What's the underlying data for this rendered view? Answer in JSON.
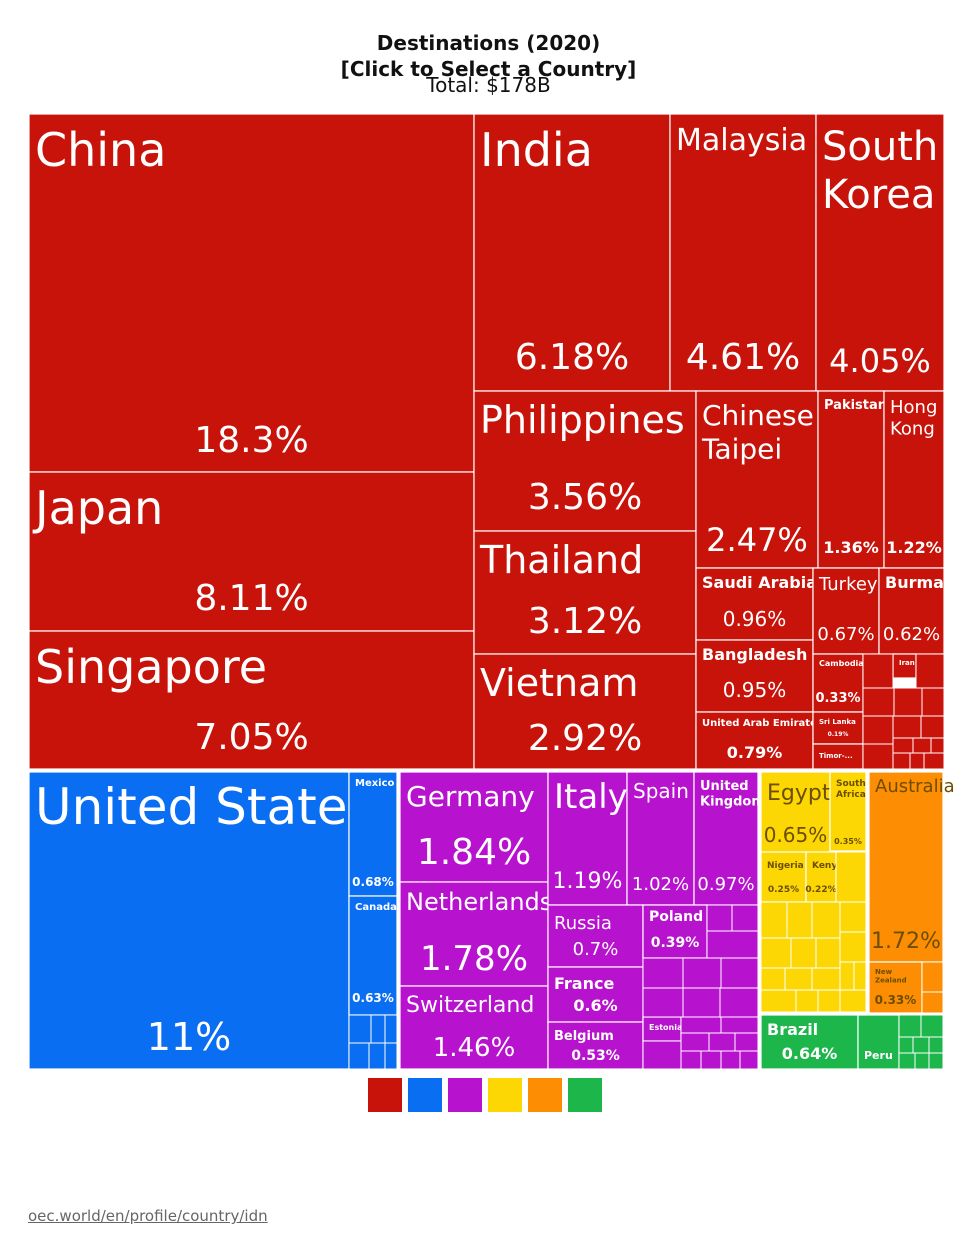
{
  "title": {
    "line1": "Destinations (2020)",
    "line2": "[Click to Select a Country]",
    "line3": "Total: $178B"
  },
  "source_link": "oec.world/en/profile/country/idn",
  "colors": {
    "asia": "#c8130b",
    "north_america": "#0a6ef3",
    "europe": "#b712cd",
    "africa": "#fdd703",
    "oceania": "#fd8e03",
    "south_america": "#1db64b"
  },
  "legend": [
    "asia",
    "north_america",
    "europe",
    "africa",
    "oceania",
    "south_america"
  ],
  "chart_data": {
    "type": "treemap",
    "title": "Destinations (2020)",
    "total": "$178B",
    "unit": "% of exports",
    "items": [
      {
        "name": "China",
        "value": 18.3,
        "label": "18.3%",
        "group": "asia"
      },
      {
        "name": "Japan",
        "value": 8.11,
        "label": "8.11%",
        "group": "asia"
      },
      {
        "name": "Singapore",
        "value": 7.05,
        "label": "7.05%",
        "group": "asia"
      },
      {
        "name": "India",
        "value": 6.18,
        "label": "6.18%",
        "group": "asia"
      },
      {
        "name": "Malaysia",
        "value": 4.61,
        "label": "4.61%",
        "group": "asia"
      },
      {
        "name": "South Korea",
        "value": 4.05,
        "label": "4.05%",
        "group": "asia"
      },
      {
        "name": "Philippines",
        "value": 3.56,
        "label": "3.56%",
        "group": "asia"
      },
      {
        "name": "Thailand",
        "value": 3.12,
        "label": "3.12%",
        "group": "asia"
      },
      {
        "name": "Vietnam",
        "value": 2.92,
        "label": "2.92%",
        "group": "asia"
      },
      {
        "name": "Chinese Taipei",
        "value": 2.47,
        "label": "2.47%",
        "group": "asia"
      },
      {
        "name": "Pakistan",
        "value": 1.36,
        "label": "1.36%",
        "group": "asia"
      },
      {
        "name": "Hong Kong",
        "value": 1.22,
        "label": "1.22%",
        "group": "asia"
      },
      {
        "name": "Saudi Arabia",
        "value": 0.96,
        "label": "0.96%",
        "group": "asia"
      },
      {
        "name": "Bangladesh",
        "value": 0.95,
        "label": "0.95%",
        "group": "asia"
      },
      {
        "name": "United Arab Emirates",
        "value": 0.79,
        "label": "0.79%",
        "group": "asia"
      },
      {
        "name": "Turkey",
        "value": 0.67,
        "label": "0.67%",
        "group": "asia"
      },
      {
        "name": "Burma",
        "value": 0.62,
        "label": "0.62%",
        "group": "asia"
      },
      {
        "name": "Cambodia",
        "value": 0.33,
        "label": "0.33%",
        "group": "asia"
      },
      {
        "name": "Iran",
        "value": null,
        "label": "",
        "group": "asia"
      },
      {
        "name": "Sri Lanka",
        "value": 0.19,
        "label": "0.19%",
        "group": "asia"
      },
      {
        "name": "Timor-...",
        "value": null,
        "label": "",
        "group": "asia"
      },
      {
        "name": "United States",
        "value": 11,
        "label": "11%",
        "group": "north_america"
      },
      {
        "name": "Mexico",
        "value": 0.68,
        "label": "0.68%",
        "group": "north_america"
      },
      {
        "name": "Canada",
        "value": 0.63,
        "label": "0.63%",
        "group": "north_america"
      },
      {
        "name": "Germany",
        "value": 1.84,
        "label": "1.84%",
        "group": "europe"
      },
      {
        "name": "Netherlands",
        "value": 1.78,
        "label": "1.78%",
        "group": "europe"
      },
      {
        "name": "Switzerland",
        "value": 1.46,
        "label": "1.46%",
        "group": "europe"
      },
      {
        "name": "Italy",
        "value": 1.19,
        "label": "1.19%",
        "group": "europe"
      },
      {
        "name": "Spain",
        "value": 1.02,
        "label": "1.02%",
        "group": "europe"
      },
      {
        "name": "United Kingdom",
        "value": 0.97,
        "label": "0.97%",
        "group": "europe"
      },
      {
        "name": "Russia",
        "value": 0.7,
        "label": "0.7%",
        "group": "europe"
      },
      {
        "name": "Poland",
        "value": 0.39,
        "label": "0.39%",
        "group": "europe"
      },
      {
        "name": "France",
        "value": 0.6,
        "label": "0.6%",
        "group": "europe"
      },
      {
        "name": "Belgium",
        "value": 0.53,
        "label": "0.53%",
        "group": "europe"
      },
      {
        "name": "Estonia",
        "value": null,
        "label": "",
        "group": "europe"
      },
      {
        "name": "Egypt",
        "value": 0.65,
        "label": "0.65%",
        "group": "africa"
      },
      {
        "name": "South Africa",
        "value": 0.35,
        "label": "0.35%",
        "group": "africa"
      },
      {
        "name": "Nigeria",
        "value": 0.25,
        "label": "0.25%",
        "group": "africa"
      },
      {
        "name": "Kenya",
        "value": 0.22,
        "label": "0.22%",
        "group": "africa"
      },
      {
        "name": "Australia",
        "value": 1.72,
        "label": "1.72%",
        "group": "oceania"
      },
      {
        "name": "New Zealand",
        "value": 0.33,
        "label": "0.33%",
        "group": "oceania"
      },
      {
        "name": "Brazil",
        "value": 0.64,
        "label": "0.64%",
        "group": "south_america"
      },
      {
        "name": "Peru",
        "value": null,
        "label": "",
        "group": "south_america"
      }
    ]
  }
}
